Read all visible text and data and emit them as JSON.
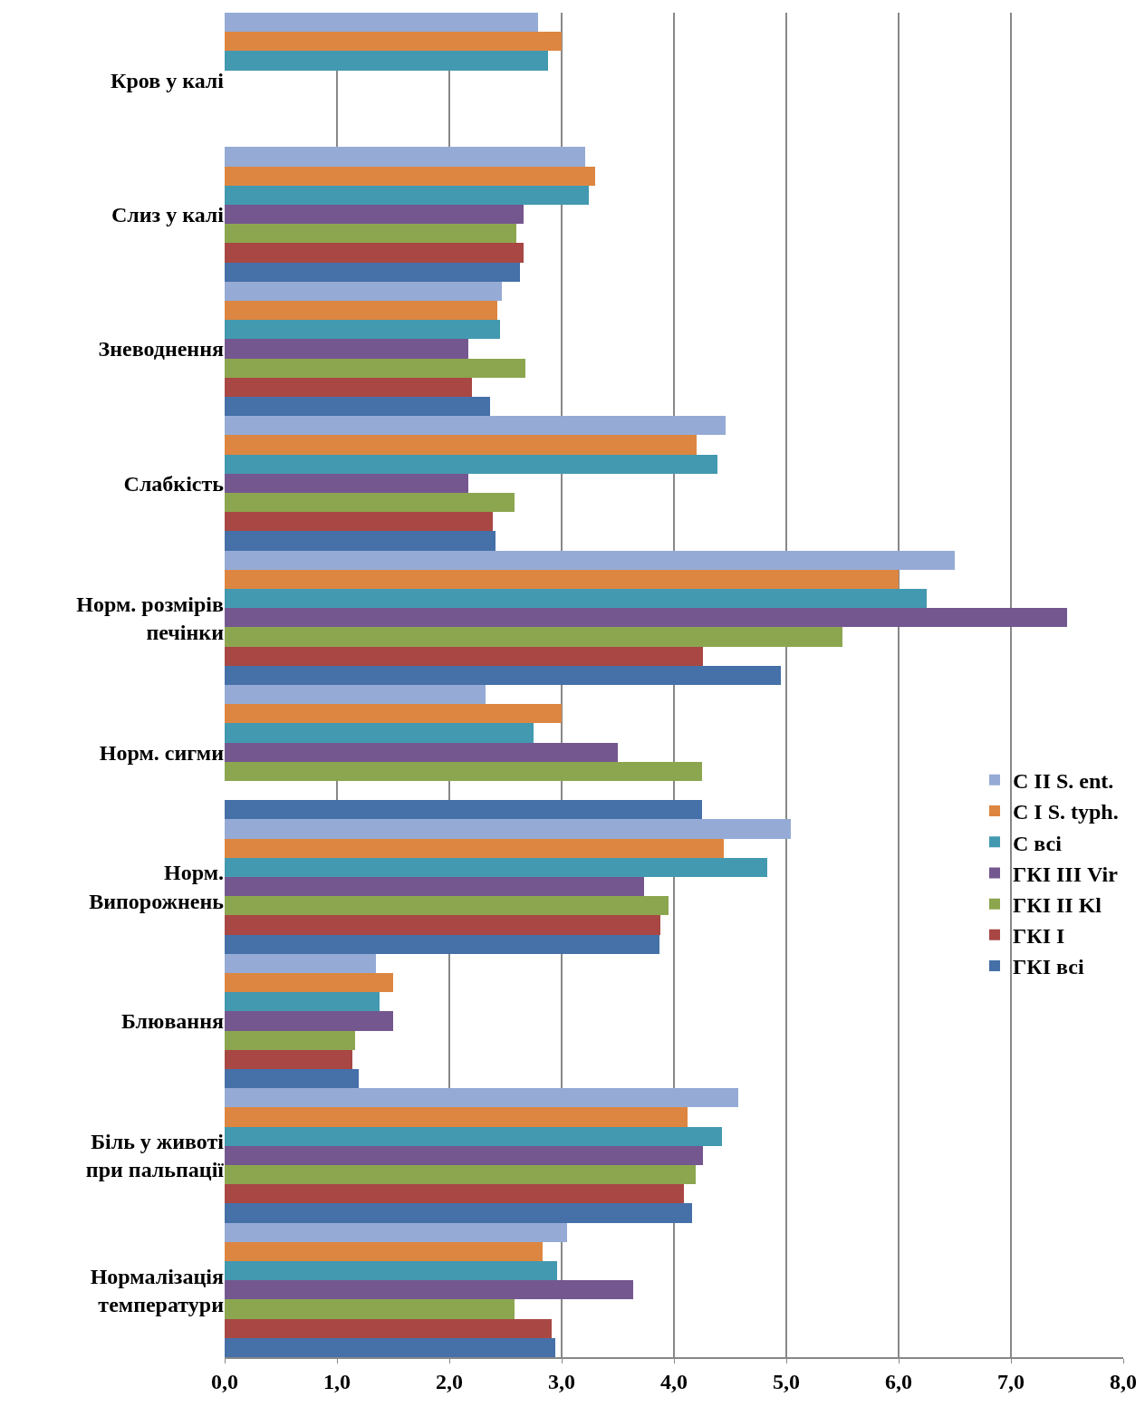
{
  "chart_data": {
    "type": "bar",
    "orientation": "horizontal",
    "categories": [
      "Кров у калі",
      "Слиз у калі",
      "Зневоднення",
      "Слабкість",
      "Норм. розмірів\nпечінки",
      "Норм. сигми",
      "Норм.\nВипорожнень",
      "Блювання",
      "Біль у животі\nпри пальпації",
      "Нормалізація\nтемператури"
    ],
    "series": [
      {
        "name": "C II S. ent.",
        "color": "#95abd5",
        "values": [
          2.79,
          3.21,
          2.47,
          4.46,
          6.5,
          2.32,
          5.04,
          1.35,
          4.57,
          3.05
        ]
      },
      {
        "name": "C I S. typh.",
        "color": "#dd8641",
        "values": [
          3.0,
          3.3,
          2.43,
          4.2,
          6.0,
          3.0,
          4.44,
          1.5,
          4.12,
          2.83
        ]
      },
      {
        "name": "C всі",
        "color": "#4399b0",
        "values": [
          2.88,
          3.24,
          2.45,
          4.39,
          6.25,
          2.75,
          4.83,
          1.38,
          4.43,
          2.96
        ]
      },
      {
        "name": "ГКІ ІІІ Vir",
        "color": "#74578f",
        "values": [
          null,
          2.66,
          2.17,
          2.17,
          7.5,
          3.5,
          3.73,
          1.5,
          4.26,
          3.64
        ]
      },
      {
        "name": "ГКІ ІІ Kl",
        "color": "#8ca64f",
        "values": [
          null,
          2.6,
          2.68,
          2.58,
          5.5,
          4.25,
          3.95,
          1.16,
          4.19,
          2.58
        ]
      },
      {
        "name": "ГКІ І",
        "color": "#a84744",
        "values": [
          null,
          2.66,
          2.2,
          2.39,
          4.26,
          null,
          3.88,
          1.14,
          4.09,
          2.91
        ]
      },
      {
        "name": "ГКІ всі",
        "color": "#4570a8",
        "values": [
          null,
          2.63,
          2.36,
          2.41,
          4.95,
          4.25,
          3.87,
          1.19,
          4.16,
          2.94
        ]
      }
    ],
    "xlim": [
      0,
      8
    ],
    "xticks": [
      {
        "value": 0,
        "label": "0,0"
      },
      {
        "value": 1,
        "label": "1,0"
      },
      {
        "value": 2,
        "label": "2,0"
      },
      {
        "value": 3,
        "label": "3,0"
      },
      {
        "value": 4,
        "label": "4,0"
      },
      {
        "value": 5,
        "label": "5,0"
      },
      {
        "value": 6,
        "label": "6,0"
      },
      {
        "value": 7,
        "label": "7,0"
      },
      {
        "value": 8,
        "label": "8,0"
      }
    ],
    "grid": "x",
    "legend": "right"
  }
}
